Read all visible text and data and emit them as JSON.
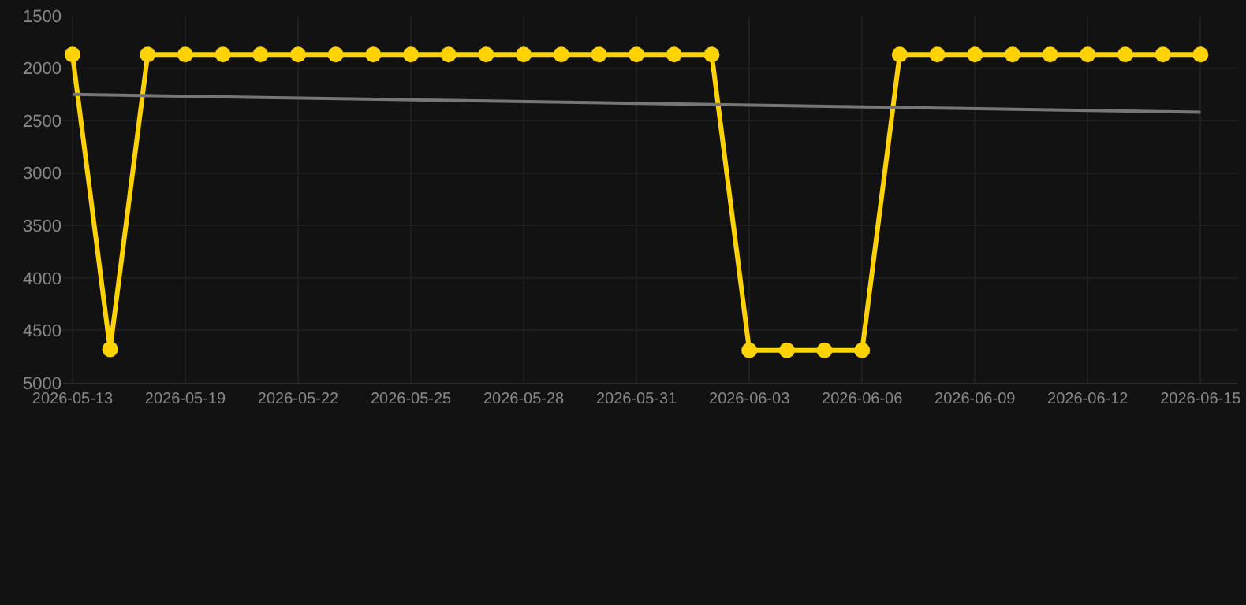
{
  "chart_data": {
    "type": "line",
    "x": [
      "2026-05-16",
      "2026-05-17",
      "2026-05-18",
      "2026-05-19",
      "2026-05-20",
      "2026-05-21",
      "2026-05-22",
      "2026-05-23",
      "2026-05-24",
      "2026-05-25",
      "2026-05-26",
      "2026-05-27",
      "2026-05-28",
      "2026-05-29",
      "2026-05-30",
      "2026-05-31",
      "2026-06-01",
      "2026-06-02",
      "2026-06-03",
      "2026-06-04",
      "2026-06-05",
      "2026-06-06",
      "2026-06-07",
      "2026-06-08",
      "2026-06-09",
      "2026-06-10",
      "2026-06-11",
      "2026-06-12",
      "2026-06-13",
      "2026-06-14",
      "2026-06-15"
    ],
    "series": [
      {
        "color": "#ffd200",
        "marker": "circle",
        "values": [
          1870,
          4680,
          1870,
          1870,
          1870,
          1870,
          1870,
          1870,
          1870,
          1870,
          1870,
          1870,
          1870,
          1870,
          1870,
          1870,
          1870,
          1870,
          4690,
          4690,
          4690,
          4690,
          1870,
          1870,
          1870,
          1870,
          1870,
          1870,
          1870,
          1870,
          1870
        ]
      },
      {
        "type": "line",
        "color": "#777777",
        "marker": "none",
        "x": [
          "2026-05-16",
          "2026-06-15"
        ],
        "values": [
          2250,
          2420
        ]
      }
    ],
    "ylim": [
      5000,
      1500
    ],
    "yticks": [
      1500,
      2000,
      2500,
      3000,
      3500,
      4000,
      4500,
      5000
    ],
    "xlim": [
      "2026-05-15T18:00",
      "2026-06-16T00:00"
    ],
    "xticks": [
      {
        "value": "2026-05-16",
        "label": "2026-05-13"
      },
      "2026-05-19",
      "2026-05-22",
      "2026-05-25",
      "2026-05-28",
      "2026-05-31",
      "2026-06-03",
      "2026-06-06",
      "2026-06-09",
      "2026-06-12",
      "2026-06-15"
    ],
    "grid": true
  }
}
